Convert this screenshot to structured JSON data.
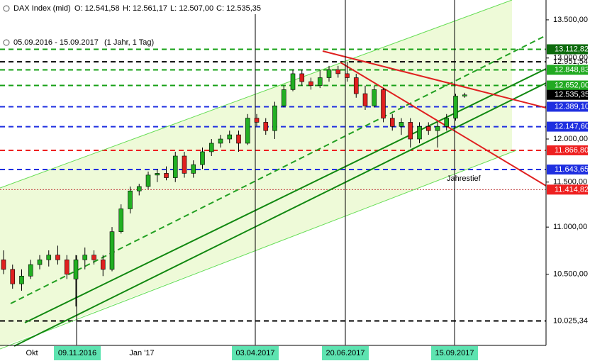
{
  "chart_data": {
    "type": "candlestick",
    "title": "DAX Index (mid)",
    "ohlc_header": [
      "O: 12.541,58",
      "H: 12.561,17",
      "L: 12.507,00",
      "C: 12.535,35"
    ],
    "date_range": "05.09.2016 - 15.09.2017",
    "period": "(1 Jahr, 1 Tag)",
    "log_scale": true,
    "ylim": [
      9800,
      13767
    ],
    "yticks": [
      {
        "value": 13500,
        "label": "13.500,00"
      },
      {
        "value": 13000,
        "label": "13.000,00"
      },
      {
        "value": 12000,
        "label": "12.000,00"
      },
      {
        "value": 11500,
        "label": "11.500,00"
      },
      {
        "value": 11000,
        "label": "11.000,00"
      },
      {
        "value": 10500,
        "label": "10.500,00"
      }
    ],
    "x_labels": [
      {
        "label": "Okt",
        "boxed": false
      },
      {
        "label": "09.11.2016",
        "boxed": true
      },
      {
        "label": "Jan '17",
        "boxed": false
      },
      {
        "label": "03.04.2017",
        "boxed": true
      },
      {
        "label": "20.06.2017",
        "boxed": true
      },
      {
        "label": "15.09.2017",
        "boxed": true
      }
    ],
    "annotation": "Jahrestief",
    "up_color": "#22b022",
    "down_color": "#e02020",
    "levels": [
      {
        "value": 13112.82,
        "label": "13.112,82",
        "color": "#16a016",
        "tag": "#0d6b0d"
      },
      {
        "value": 12951.54,
        "label": "12.951,54",
        "color": "#000000",
        "tag": null
      },
      {
        "value": 12848.83,
        "label": "12.848,83",
        "color": "#16a016",
        "tag": "#22aa22"
      },
      {
        "value": 12652.0,
        "label": "12.652,00",
        "color": "#16a016",
        "tag": "#22aa22"
      },
      {
        "value": 12535.35,
        "label": "12.535,35",
        "color": null,
        "tag": "#000000"
      },
      {
        "value": 12389.1,
        "label": "12.389,10",
        "color": "#1f2fe0",
        "tag": "#1f2fe0"
      },
      {
        "value": 12147.6,
        "label": "12.147,60",
        "color": "#1f2fe0",
        "tag": "#1f2fe0"
      },
      {
        "value": 11866.8,
        "label": "11.866,80",
        "color": "#ee2020",
        "tag": "#ee2020"
      },
      {
        "value": 11643.65,
        "label": "11.643,65",
        "color": "#1f2fe0",
        "tag": "#1f2fe0"
      },
      {
        "value": 11414.82,
        "label": "11.414,82",
        "color": "#c04040",
        "tag": "#ee2020"
      },
      {
        "value": 10025.34,
        "label": "10.025,34",
        "color": "#000000",
        "tag": null
      }
    ],
    "candles": {
      "open": [
        10650,
        10550,
        10400,
        10480,
        10600,
        10650,
        10700,
        10650,
        10450,
        10650,
        10700,
        10650,
        10550,
        10950,
        11200,
        11400,
        11450,
        11580,
        11600,
        11550,
        11800,
        11600,
        11700,
        11850,
        11950,
        12000,
        12050,
        11950,
        12250,
        12200,
        12100,
        12400,
        12600,
        12800,
        12700,
        12650,
        12750,
        12850,
        12800,
        12750,
        12550,
        12400,
        12600,
        12250,
        12150,
        12200,
        12000,
        12150,
        12100,
        12150,
        12250,
        12520
      ],
      "high": [
        10750,
        10600,
        10550,
        10650,
        10700,
        10750,
        10800,
        10700,
        10700,
        10780,
        10750,
        10700,
        11000,
        11250,
        11450,
        11480,
        11620,
        11650,
        11680,
        11850,
        11850,
        11750,
        11900,
        12000,
        12050,
        12100,
        12100,
        12300,
        12300,
        12250,
        12450,
        12650,
        12850,
        12850,
        12750,
        12850,
        12900,
        12900,
        12951,
        12800,
        12650,
        12650,
        12620,
        12300,
        12250,
        12250,
        12200,
        12200,
        12200,
        12300,
        12550,
        12561
      ],
      "low": [
        10500,
        10350,
        10330,
        10450,
        10550,
        10580,
        10600,
        10450,
        10170,
        10550,
        10600,
        10480,
        10530,
        10930,
        11150,
        11350,
        11420,
        11500,
        11520,
        11500,
        11550,
        11550,
        11650,
        11800,
        11900,
        11950,
        11850,
        11930,
        12150,
        12050,
        12000,
        12380,
        12580,
        12650,
        12600,
        12620,
        12700,
        12750,
        12700,
        12500,
        12350,
        12380,
        12200,
        12100,
        12050,
        11900,
        11950,
        12050,
        11900,
        12100,
        12220,
        12500
      ],
      "close": [
        10550,
        10400,
        10480,
        10600,
        10650,
        10700,
        10650,
        10500,
        10650,
        10700,
        10650,
        10550,
        10950,
        11200,
        11400,
        11450,
        11580,
        11600,
        11550,
        11800,
        11600,
        11700,
        11850,
        11950,
        12000,
        12050,
        11950,
        12250,
        12200,
        12100,
        12400,
        12600,
        12800,
        12700,
        12650,
        12750,
        12850,
        12800,
        12750,
        12550,
        12400,
        12600,
        12250,
        12150,
        12200,
        12000,
        12150,
        12100,
        12150,
        12250,
        12520,
        12535
      ]
    }
  }
}
